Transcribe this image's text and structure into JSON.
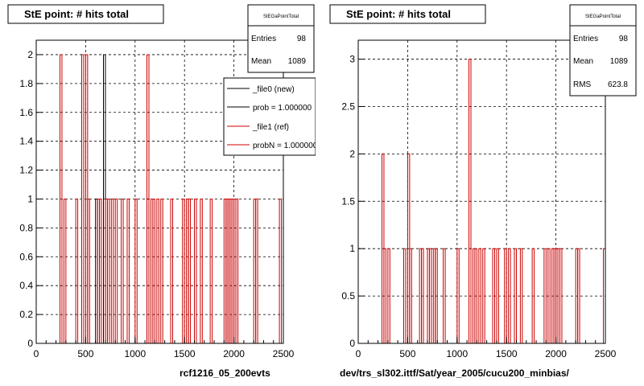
{
  "colors": {
    "new": "#000000",
    "ref": "#cc0000",
    "grid": "#000000",
    "background": "#ffffff"
  },
  "footer_text": "",
  "panels": [
    {
      "title": "StE point: # hits total",
      "xlabel": "rcf1216_05_200evts",
      "xlim": [
        0,
        2500
      ],
      "ylim": [
        0,
        2.1
      ],
      "xticks": [
        "0",
        "500",
        "1000",
        "1500",
        "2000",
        "2500"
      ],
      "yticks": [
        "0",
        "0.2",
        "0.4",
        "0.6",
        "0.8",
        "1",
        "1.2",
        "1.4",
        "1.6",
        "1.8",
        "2"
      ],
      "stats": {
        "header": "StEGaPointTotal",
        "rows": [
          {
            "label": "Entries",
            "value": "98"
          },
          {
            "label": "Mean",
            "value": "1089"
          }
        ]
      },
      "legend": [
        {
          "label": "_file0 (new)",
          "color": "#000000"
        },
        {
          "label": "prob = 1.000000",
          "color": "#000000"
        },
        {
          "label": "_file1 (ref)",
          "color": "#cc0000"
        },
        {
          "label": "probN = 1.000000",
          "color": "#cc0000"
        }
      ]
    },
    {
      "title": "StE point: # hits total",
      "xlabel": "dev/trs_sl302.ittf/Sat/year_2005/cucu200_minbias/",
      "xlim": [
        0,
        2500
      ],
      "ylim": [
        0,
        3.2
      ],
      "xticks": [
        "0",
        "500",
        "1000",
        "1500",
        "2000",
        "2500"
      ],
      "yticks": [
        "0",
        "0.5",
        "1",
        "1.5",
        "2",
        "2.5",
        "3"
      ],
      "stats": {
        "header": "StEGaPointTotal",
        "rows": [
          {
            "label": "Entries",
            "value": "98"
          },
          {
            "label": "Mean",
            "value": "1089"
          },
          {
            "label": "RMS",
            "value": "623.8"
          }
        ]
      },
      "legend": []
    }
  ],
  "chart_data": [
    {
      "type": "histogram",
      "title": "StE point: # hits total",
      "xlabel": "rcf1216_05_200evts",
      "xlim": [
        0,
        2500
      ],
      "ylim": [
        0,
        2.1
      ],
      "grid": true,
      "legend_position": "top-right",
      "bin_width": 20,
      "series": [
        {
          "name": "_file0 (new)",
          "color": "#000000",
          "bins": [
            [
              600,
              1
            ],
            [
              680,
              2
            ],
            [
              1120,
              1
            ]
          ]
        },
        {
          "name": "_file1 (ref)",
          "color": "#cc0000",
          "bins": [
            [
              240,
              2
            ],
            [
              280,
              1
            ],
            [
              400,
              1
            ],
            [
              460,
              2
            ],
            [
              500,
              2
            ],
            [
              520,
              1
            ],
            [
              620,
              1
            ],
            [
              640,
              1
            ],
            [
              700,
              1
            ],
            [
              720,
              1
            ],
            [
              760,
              1
            ],
            [
              800,
              1
            ],
            [
              860,
              1
            ],
            [
              920,
              1
            ],
            [
              1000,
              1
            ],
            [
              1120,
              2
            ],
            [
              1160,
              1
            ],
            [
              1180,
              1
            ],
            [
              1220,
              1
            ],
            [
              1260,
              1
            ],
            [
              1360,
              1
            ],
            [
              1480,
              1
            ],
            [
              1520,
              1
            ],
            [
              1540,
              1
            ],
            [
              1600,
              1
            ],
            [
              1660,
              1
            ],
            [
              1760,
              1
            ],
            [
              1900,
              1
            ],
            [
              1920,
              1
            ],
            [
              1940,
              1
            ],
            [
              1960,
              1
            ],
            [
              1980,
              1
            ],
            [
              2000,
              1
            ],
            [
              2020,
              1
            ],
            [
              2200,
              1
            ],
            [
              2220,
              1
            ],
            [
              2460,
              1
            ]
          ]
        }
      ]
    },
    {
      "type": "histogram",
      "title": "StE point: # hits total",
      "xlabel": "dev/trs_sl302.ittf/Sat/year_2005/cucu200_minbias/",
      "xlim": [
        0,
        2500
      ],
      "ylim": [
        0,
        3.2
      ],
      "grid": true,
      "bin_width": 20,
      "series": [
        {
          "name": "",
          "color": "#cc0000",
          "bins": [
            [
              240,
              2
            ],
            [
              260,
              1
            ],
            [
              300,
              1
            ],
            [
              460,
              1
            ],
            [
              500,
              2
            ],
            [
              520,
              1
            ],
            [
              620,
              1
            ],
            [
              640,
              1
            ],
            [
              700,
              1
            ],
            [
              720,
              1
            ],
            [
              760,
              1
            ],
            [
              780,
              1
            ],
            [
              860,
              1
            ],
            [
              1000,
              1
            ],
            [
              1120,
              3
            ],
            [
              1160,
              1
            ],
            [
              1180,
              1
            ],
            [
              1220,
              1
            ],
            [
              1260,
              1
            ],
            [
              1360,
              1
            ],
            [
              1400,
              1
            ],
            [
              1480,
              1
            ],
            [
              1520,
              1
            ],
            [
              1580,
              1
            ],
            [
              1640,
              1
            ],
            [
              1760,
              1
            ],
            [
              1880,
              1
            ],
            [
              1920,
              1
            ],
            [
              1960,
              1
            ],
            [
              1980,
              1
            ],
            [
              2000,
              1
            ],
            [
              2020,
              1
            ],
            [
              2040,
              1
            ],
            [
              2200,
              1
            ],
            [
              2220,
              1
            ],
            [
              2480,
              1
            ]
          ]
        }
      ]
    }
  ]
}
